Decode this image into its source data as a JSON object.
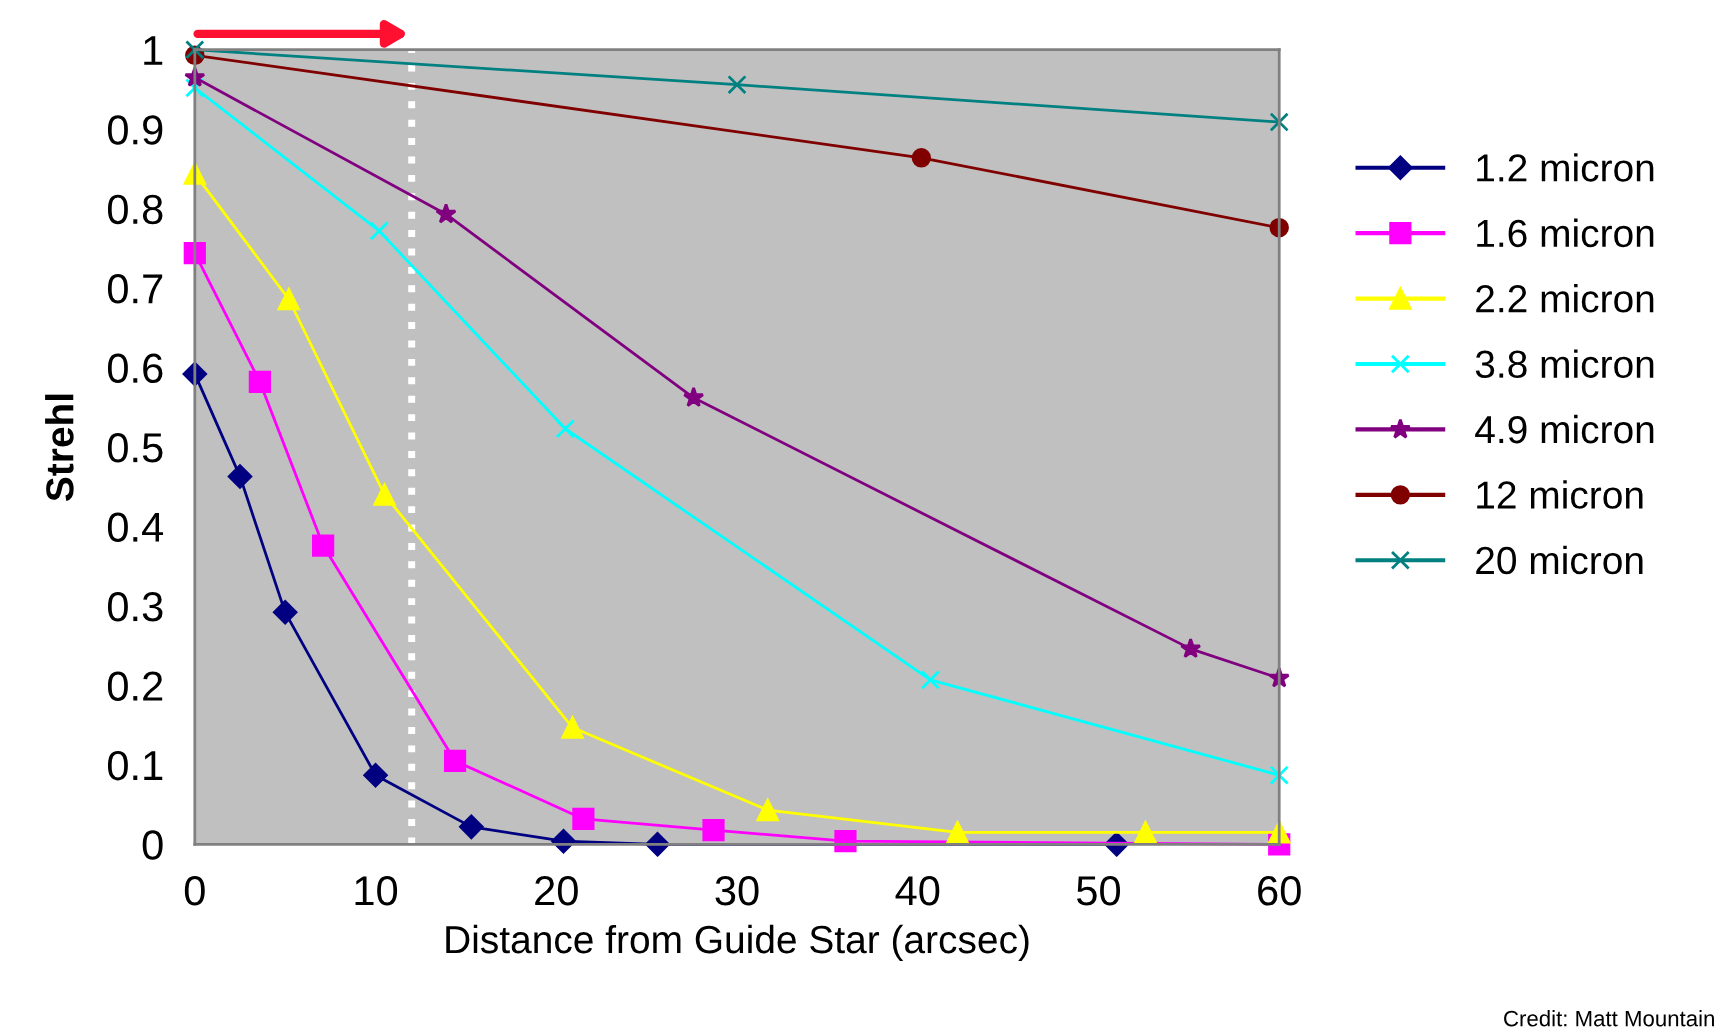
{
  "chart_data": {
    "type": "line",
    "xlabel": "Distance from Guide Star (arcsec)",
    "ylabel": "Strehl",
    "xlim": [
      0,
      60
    ],
    "xticks": [
      0,
      10,
      20,
      30,
      40,
      50,
      60
    ],
    "ylim": [
      0,
      1
    ],
    "yticks": [
      0,
      0.1,
      0.2,
      0.3,
      0.4,
      0.5,
      0.6,
      0.7,
      0.8,
      0.9,
      1
    ],
    "grid": false,
    "legend": "right",
    "line_style": "solid",
    "series": [
      {
        "name": "1.2 micron",
        "color": "#000080",
        "marker": "diamond",
        "x": [
          0,
          2.5,
          5,
          10,
          15.3,
          20.4,
          25.6,
          51
        ],
        "values": [
          0.592,
          0.463,
          0.292,
          0.087,
          0.022,
          0.004,
          0,
          0
        ]
      },
      {
        "name": "1.6 micron",
        "color": "#ff00ff",
        "marker": "square",
        "x": [
          0,
          3.6,
          7.1,
          14.4,
          21.5,
          28.7,
          36,
          60
        ],
        "values": [
          0.744,
          0.582,
          0.376,
          0.105,
          0.032,
          0.018,
          0.004,
          0
        ]
      },
      {
        "name": "2.2 micron",
        "color": "#ffff00",
        "marker": "triangle",
        "x": [
          0,
          5.2,
          10.5,
          20.9,
          31.7,
          42.2,
          52.6,
          60
        ],
        "values": [
          0.844,
          0.686,
          0.44,
          0.147,
          0.043,
          0.015,
          0.015,
          0.015
        ]
      },
      {
        "name": "3.8 micron",
        "color": "#00ffff",
        "marker": "cross",
        "x": [
          0,
          10.2,
          20.5,
          40.7,
          60
        ],
        "values": [
          0.952,
          0.772,
          0.523,
          0.207,
          0.087
        ]
      },
      {
        "name": "4.9 micron",
        "color": "#800080",
        "marker": "star",
        "x": [
          0,
          13.9,
          27.6,
          55.1,
          60
        ],
        "values": [
          0.965,
          0.793,
          0.562,
          0.246,
          0.209
        ]
      },
      {
        "name": "12 micron",
        "color": "#800000",
        "marker": "circle",
        "x": [
          0,
          40.2,
          60
        ],
        "values": [
          0.993,
          0.864,
          0.776
        ]
      },
      {
        "name": "20 micron",
        "color": "#008080",
        "marker": "cross",
        "x": [
          0,
          30,
          60
        ],
        "values": [
          1.0,
          0.956,
          0.909
        ]
      }
    ],
    "ref_lines": [
      {
        "axis": "x",
        "value": 12,
        "label": null,
        "color": "#ffffff",
        "line_style": "dotted"
      }
    ],
    "annotations": [
      "Credit: Matt Mountain"
    ]
  }
}
